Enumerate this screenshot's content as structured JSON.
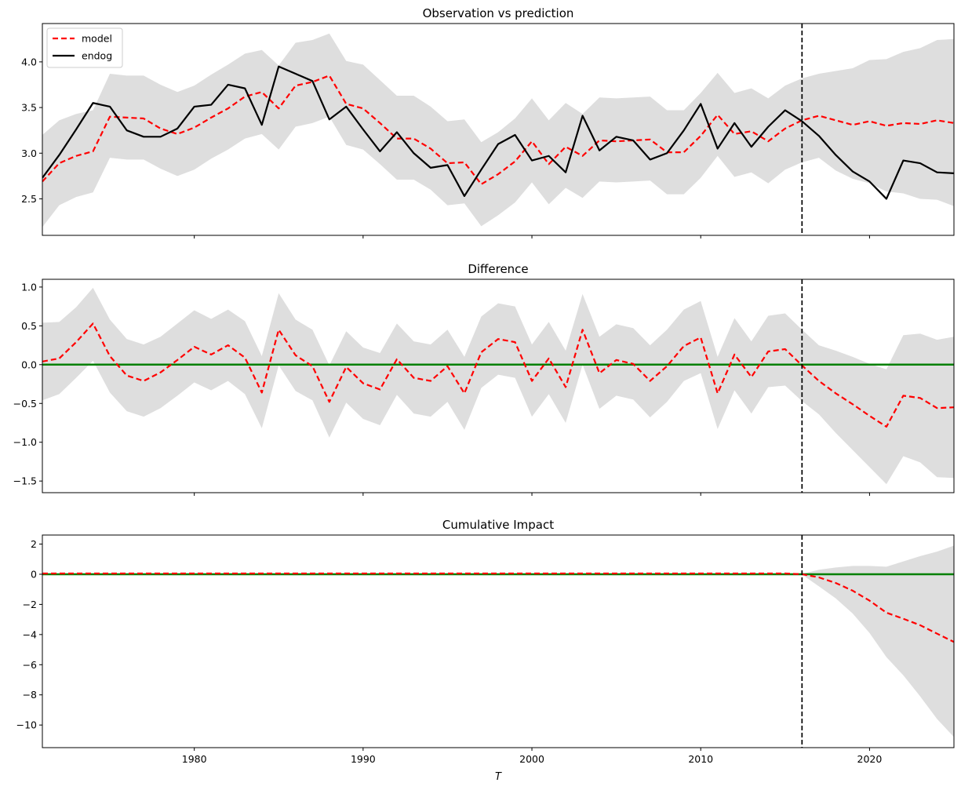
{
  "chart_data": [
    {
      "type": "line",
      "title": "Observation vs prediction",
      "xlim": [
        1971,
        2025
      ],
      "ylim": [
        2.1,
        4.42
      ],
      "yticks": [
        2.5,
        3.0,
        3.5,
        4.0
      ],
      "ytick_labels": [
        "2.5",
        "3.0",
        "3.5",
        "4.0"
      ],
      "xticks": [
        1980,
        1990,
        2000,
        2010,
        2020
      ],
      "intervention_x": 2016,
      "legend": {
        "placement": "upper-left",
        "entries": [
          "model",
          "endog"
        ]
      },
      "x": [
        1971,
        1972,
        1973,
        1974,
        1975,
        1976,
        1977,
        1978,
        1979,
        1980,
        1981,
        1982,
        1983,
        1984,
        1985,
        1986,
        1987,
        1988,
        1989,
        1990,
        1991,
        1992,
        1993,
        1994,
        1995,
        1996,
        1997,
        1998,
        1999,
        2000,
        2001,
        2002,
        2003,
        2004,
        2005,
        2006,
        2007,
        2008,
        2009,
        2010,
        2011,
        2012,
        2013,
        2014,
        2015,
        2016,
        2017,
        2018,
        2019,
        2020,
        2021,
        2022,
        2023,
        2024,
        2025
      ],
      "series": [
        {
          "name": "model",
          "style": "dashed",
          "color": "#ff0000",
          "values": [
            2.69,
            2.89,
            2.97,
            3.02,
            3.4,
            3.39,
            3.38,
            3.27,
            3.21,
            3.28,
            3.39,
            3.49,
            3.62,
            3.67,
            3.49,
            3.74,
            3.78,
            3.85,
            3.54,
            3.49,
            3.33,
            3.16,
            3.16,
            3.05,
            2.89,
            2.9,
            2.66,
            2.77,
            2.91,
            3.13,
            2.88,
            3.07,
            2.97,
            3.14,
            3.13,
            3.14,
            3.15,
            3.01,
            3.01,
            3.19,
            3.42,
            3.21,
            3.24,
            3.13,
            3.27,
            3.36,
            3.41,
            3.36,
            3.31,
            3.35,
            3.3,
            3.33,
            3.32,
            3.36,
            3.33
          ]
        },
        {
          "name": "endog",
          "style": "solid",
          "color": "#000000",
          "values": [
            2.73,
            2.98,
            3.26,
            3.55,
            3.51,
            3.25,
            3.18,
            3.18,
            3.27,
            3.51,
            3.53,
            3.75,
            3.71,
            3.31,
            3.95,
            3.87,
            3.79,
            3.37,
            3.51,
            3.26,
            3.02,
            3.23,
            3.0,
            2.84,
            2.87,
            2.53,
            2.82,
            3.1,
            3.2,
            2.92,
            2.97,
            2.79,
            3.41,
            3.03,
            3.18,
            3.14,
            2.93,
            3.0,
            3.25,
            3.54,
            3.05,
            3.33,
            3.07,
            3.29,
            3.47,
            3.35,
            3.19,
            2.98,
            2.8,
            2.69,
            2.5,
            2.92,
            2.89,
            2.79,
            2.78
          ]
        }
      ],
      "band": {
        "color": "#dedede",
        "lower": [
          2.19,
          2.43,
          2.52,
          2.57,
          2.95,
          2.93,
          2.93,
          2.83,
          2.75,
          2.82,
          2.94,
          3.04,
          3.16,
          3.21,
          3.04,
          3.29,
          3.33,
          3.4,
          3.09,
          3.04,
          2.88,
          2.71,
          2.71,
          2.6,
          2.43,
          2.45,
          2.2,
          2.32,
          2.46,
          2.68,
          2.44,
          2.62,
          2.51,
          2.69,
          2.68,
          2.69,
          2.7,
          2.55,
          2.55,
          2.73,
          2.97,
          2.74,
          2.79,
          2.67,
          2.82,
          2.9,
          2.95,
          2.81,
          2.72,
          2.67,
          2.58,
          2.56,
          2.5,
          2.49,
          2.42
        ],
        "upper": [
          3.2,
          3.36,
          3.43,
          3.47,
          3.87,
          3.85,
          3.85,
          3.75,
          3.67,
          3.74,
          3.86,
          3.97,
          4.09,
          4.13,
          3.96,
          4.21,
          4.24,
          4.31,
          4.01,
          3.97,
          3.8,
          3.63,
          3.63,
          3.51,
          3.35,
          3.37,
          3.12,
          3.23,
          3.38,
          3.6,
          3.36,
          3.55,
          3.43,
          3.61,
          3.6,
          3.61,
          3.62,
          3.47,
          3.47,
          3.66,
          3.88,
          3.66,
          3.71,
          3.6,
          3.74,
          3.82,
          3.87,
          3.9,
          3.93,
          4.02,
          4.03,
          4.11,
          4.15,
          4.24,
          4.25
        ]
      }
    },
    {
      "type": "line",
      "title": "Difference",
      "xlim": [
        1971,
        2025
      ],
      "ylim": [
        -1.65,
        1.1
      ],
      "yticks": [
        -1.5,
        -1.0,
        -0.5,
        0.0,
        0.5,
        1.0
      ],
      "ytick_labels": [
        "−1.5",
        "−1.0",
        "−0.5",
        "0.0",
        "0.5",
        "1.0"
      ],
      "xticks": [
        1980,
        1990,
        2000,
        2010,
        2020
      ],
      "intervention_x": 2016,
      "zero_line_color": "#008000",
      "x": [
        1971,
        1972,
        1973,
        1974,
        1975,
        1976,
        1977,
        1978,
        1979,
        1980,
        1981,
        1982,
        1983,
        1984,
        1985,
        1986,
        1987,
        1988,
        1989,
        1990,
        1991,
        1992,
        1993,
        1994,
        1995,
        1996,
        1997,
        1998,
        1999,
        2000,
        2001,
        2002,
        2003,
        2004,
        2005,
        2006,
        2007,
        2008,
        2009,
        2010,
        2011,
        2012,
        2013,
        2014,
        2015,
        2016,
        2017,
        2018,
        2019,
        2020,
        2021,
        2022,
        2023,
        2024,
        2025
      ],
      "series": [
        {
          "name": "",
          "style": "dashed",
          "color": "#ff0000",
          "values": [
            0.04,
            0.08,
            0.29,
            0.53,
            0.11,
            -0.14,
            -0.21,
            -0.1,
            0.06,
            0.23,
            0.13,
            0.25,
            0.09,
            -0.36,
            0.45,
            0.12,
            -0.02,
            -0.48,
            -0.03,
            -0.24,
            -0.32,
            0.07,
            -0.17,
            -0.21,
            -0.02,
            -0.37,
            0.16,
            0.33,
            0.29,
            -0.21,
            0.08,
            -0.29,
            0.45,
            -0.11,
            0.06,
            0.01,
            -0.21,
            -0.02,
            0.24,
            0.35,
            -0.37,
            0.13,
            -0.16,
            0.17,
            0.2,
            -0.01,
            -0.21,
            -0.37,
            -0.51,
            -0.66,
            -0.8,
            -0.4,
            -0.43,
            -0.56,
            -0.55
          ]
        }
      ],
      "band": {
        "color": "#dedede",
        "lower": [
          -0.46,
          -0.38,
          -0.17,
          0.05,
          -0.36,
          -0.6,
          -0.67,
          -0.56,
          -0.4,
          -0.23,
          -0.33,
          -0.21,
          -0.38,
          -0.82,
          -0.01,
          -0.34,
          -0.46,
          -0.94,
          -0.49,
          -0.7,
          -0.78,
          -0.39,
          -0.63,
          -0.67,
          -0.48,
          -0.84,
          -0.3,
          -0.13,
          -0.17,
          -0.67,
          -0.38,
          -0.75,
          0.0,
          -0.57,
          -0.4,
          -0.45,
          -0.68,
          -0.48,
          -0.21,
          -0.11,
          -0.83,
          -0.33,
          -0.63,
          -0.29,
          -0.27,
          -0.47,
          -0.64,
          -0.88,
          -1.1,
          -1.32,
          -1.54,
          -1.18,
          -1.26,
          -1.45,
          -1.46
        ],
        "upper": [
          0.54,
          0.55,
          0.74,
          0.99,
          0.58,
          0.33,
          0.26,
          0.36,
          0.53,
          0.7,
          0.59,
          0.71,
          0.56,
          0.11,
          0.92,
          0.58,
          0.45,
          -0.01,
          0.43,
          0.22,
          0.15,
          0.53,
          0.3,
          0.26,
          0.45,
          0.1,
          0.62,
          0.79,
          0.75,
          0.26,
          0.55,
          0.18,
          0.91,
          0.36,
          0.52,
          0.47,
          0.25,
          0.45,
          0.71,
          0.82,
          0.1,
          0.6,
          0.3,
          0.63,
          0.66,
          0.45,
          0.25,
          0.18,
          0.1,
          0.01,
          -0.06,
          0.38,
          0.4,
          0.32,
          0.36
        ]
      }
    },
    {
      "type": "line",
      "title": "Cumulative Impact",
      "xlim": [
        1971,
        2025
      ],
      "ylim": [
        -11.5,
        2.6
      ],
      "yticks": [
        -10,
        -8,
        -6,
        -4,
        -2,
        0,
        2
      ],
      "ytick_labels": [
        "−10",
        "−8",
        "−6",
        "−4",
        "−2",
        "0",
        "2"
      ],
      "xticks": [
        1980,
        1990,
        2000,
        2010,
        2020
      ],
      "xtick_labels": [
        "1980",
        "1990",
        "2000",
        "2010",
        "2020"
      ],
      "xlabel": "T",
      "intervention_x": 2016,
      "zero_line_color": "#008000",
      "x": [
        1971,
        1972,
        1973,
        1974,
        1975,
        1976,
        1977,
        1978,
        1979,
        1980,
        1981,
        1982,
        1983,
        1984,
        1985,
        1986,
        1987,
        1988,
        1989,
        1990,
        1991,
        1992,
        1993,
        1994,
        1995,
        1996,
        1997,
        1998,
        1999,
        2000,
        2001,
        2002,
        2003,
        2004,
        2005,
        2006,
        2007,
        2008,
        2009,
        2010,
        2011,
        2012,
        2013,
        2014,
        2015,
        2016,
        2017,
        2018,
        2019,
        2020,
        2021,
        2022,
        2023,
        2024,
        2025
      ],
      "series": [
        {
          "name": "",
          "style": "dashed",
          "color": "#ff0000",
          "values": [
            0.05,
            0.05,
            0.05,
            0.05,
            0.05,
            0.05,
            0.05,
            0.05,
            0.05,
            0.05,
            0.05,
            0.05,
            0.05,
            0.05,
            0.05,
            0.05,
            0.05,
            0.05,
            0.05,
            0.05,
            0.05,
            0.05,
            0.05,
            0.05,
            0.05,
            0.05,
            0.05,
            0.05,
            0.05,
            0.05,
            0.05,
            0.05,
            0.05,
            0.05,
            0.05,
            0.05,
            0.05,
            0.05,
            0.05,
            0.05,
            0.05,
            0.05,
            0.05,
            0.05,
            0.05,
            0.0,
            -0.21,
            -0.58,
            -1.09,
            -1.75,
            -2.55,
            -2.95,
            -3.38,
            -3.94,
            -4.49
          ]
        }
      ],
      "band": {
        "color": "#dedede",
        "start_x": 2016,
        "x": [
          2016,
          2017,
          2018,
          2019,
          2020,
          2021,
          2022,
          2023,
          2024,
          2025
        ],
        "lower": [
          -0.02,
          -0.8,
          -1.6,
          -2.6,
          -3.9,
          -5.5,
          -6.7,
          -8.1,
          -9.6,
          -10.8
        ],
        "upper": [
          0.02,
          0.3,
          0.45,
          0.55,
          0.55,
          0.5,
          0.85,
          1.2,
          1.5,
          1.9
        ]
      }
    }
  ]
}
